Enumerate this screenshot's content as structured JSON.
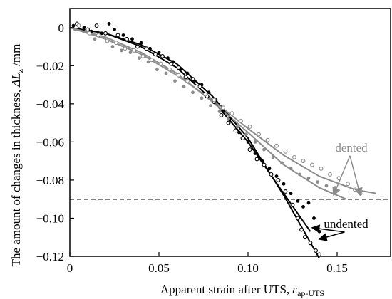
{
  "chart_data": {
    "type": "scatter",
    "xlabel": "Apparent strain after UTS,",
    "xlabel_symbol": "ε",
    "xlabel_sub": "ap-UTS",
    "ylabel": "The amount of changes in thickness,",
    "ylabel_symbol": "ΔL",
    "ylabel_sub": "z",
    "ylabel_unit": " /mm",
    "xlim": [
      0,
      0.18
    ],
    "ylim": [
      -0.12,
      0.01
    ],
    "x_ticks": [
      0,
      0.05,
      0.1,
      0.15
    ],
    "x_tick_labels": [
      "0",
      "0.05",
      "0.10",
      "0.15"
    ],
    "y_ticks": [
      0,
      -0.02,
      -0.04,
      -0.06,
      -0.08,
      -0.1,
      -0.12
    ],
    "y_tick_labels": [
      "0",
      "−0.02",
      "−0.04",
      "−0.06",
      "−0.08",
      "−0.10",
      "−0.12"
    ],
    "grid": false,
    "colors": {
      "undented": "#000000",
      "dented": "#8c8c8c"
    },
    "reference_line": {
      "y": -0.09,
      "style": "dashed"
    },
    "annotations": [
      {
        "text": "dented",
        "x": 0.158,
        "y": -0.065,
        "color": "#8c8c8c",
        "arrow_to": [
          [
            0.148,
            -0.088
          ],
          [
            0.163,
            -0.088
          ]
        ]
      },
      {
        "text": "undented",
        "x": 0.155,
        "y": -0.105,
        "color": "#000000",
        "arrow_to": [
          [
            0.136,
            -0.105
          ],
          [
            0.14,
            -0.111
          ]
        ]
      }
    ],
    "series": [
      {
        "group": "undented",
        "marker": "filled",
        "points": [
          [
            0.002,
            0.001
          ],
          [
            0.008,
            0.0
          ],
          [
            0.012,
            -0.002
          ],
          [
            0.018,
            -0.003
          ],
          [
            0.022,
            0.002
          ],
          [
            0.025,
            -0.001
          ],
          [
            0.03,
            -0.004
          ],
          [
            0.035,
            -0.006
          ],
          [
            0.04,
            -0.008
          ],
          [
            0.045,
            -0.011
          ],
          [
            0.05,
            -0.013
          ],
          [
            0.055,
            -0.016
          ],
          [
            0.058,
            -0.018
          ],
          [
            0.062,
            -0.022
          ],
          [
            0.066,
            -0.024
          ],
          [
            0.07,
            -0.028
          ],
          [
            0.074,
            -0.03
          ],
          [
            0.078,
            -0.034
          ],
          [
            0.082,
            -0.038
          ],
          [
            0.086,
            -0.044
          ],
          [
            0.09,
            -0.048
          ],
          [
            0.095,
            -0.055
          ],
          [
            0.1,
            -0.06
          ],
          [
            0.104,
            -0.066
          ],
          [
            0.108,
            -0.07
          ],
          [
            0.112,
            -0.074
          ],
          [
            0.116,
            -0.078
          ],
          [
            0.12,
            -0.082
          ],
          [
            0.124,
            -0.087
          ],
          [
            0.128,
            -0.091
          ],
          [
            0.131,
            -0.094
          ],
          [
            0.134,
            -0.092
          ],
          [
            0.137,
            -0.1
          ],
          [
            0.14,
            -0.107
          ]
        ]
      },
      {
        "group": "undented",
        "marker": "open",
        "points": [
          [
            0.004,
            0.002
          ],
          [
            0.01,
            -0.001
          ],
          [
            0.015,
            0.001
          ],
          [
            0.02,
            -0.003
          ],
          [
            0.027,
            -0.004
          ],
          [
            0.032,
            -0.006
          ],
          [
            0.038,
            -0.01
          ],
          [
            0.043,
            -0.011
          ],
          [
            0.048,
            -0.014
          ],
          [
            0.052,
            -0.015
          ],
          [
            0.057,
            -0.019
          ],
          [
            0.061,
            -0.021
          ],
          [
            0.065,
            -0.026
          ],
          [
            0.069,
            -0.027
          ],
          [
            0.073,
            -0.031
          ],
          [
            0.077,
            -0.036
          ],
          [
            0.081,
            -0.039
          ],
          [
            0.085,
            -0.046
          ],
          [
            0.089,
            -0.05
          ],
          [
            0.093,
            -0.054
          ],
          [
            0.097,
            -0.058
          ],
          [
            0.101,
            -0.064
          ],
          [
            0.105,
            -0.069
          ],
          [
            0.109,
            -0.072
          ],
          [
            0.113,
            -0.077
          ],
          [
            0.117,
            -0.08
          ],
          [
            0.121,
            -0.086
          ],
          [
            0.125,
            -0.093
          ],
          [
            0.128,
            -0.1
          ],
          [
            0.13,
            -0.106
          ],
          [
            0.132,
            -0.11
          ],
          [
            0.135,
            -0.113
          ],
          [
            0.138,
            -0.117
          ],
          [
            0.14,
            -0.119
          ]
        ]
      },
      {
        "group": "dented",
        "marker": "filled",
        "points": [
          [
            0.003,
            -0.001
          ],
          [
            0.009,
            -0.002
          ],
          [
            0.014,
            -0.006
          ],
          [
            0.019,
            -0.005
          ],
          [
            0.024,
            -0.01
          ],
          [
            0.029,
            -0.012
          ],
          [
            0.034,
            -0.013
          ],
          [
            0.039,
            -0.016
          ],
          [
            0.044,
            -0.018
          ],
          [
            0.049,
            -0.022
          ],
          [
            0.054,
            -0.024
          ],
          [
            0.059,
            -0.028
          ],
          [
            0.064,
            -0.031
          ],
          [
            0.069,
            -0.034
          ],
          [
            0.074,
            -0.037
          ],
          [
            0.079,
            -0.041
          ],
          [
            0.084,
            -0.044
          ],
          [
            0.089,
            -0.048
          ],
          [
            0.094,
            -0.052
          ],
          [
            0.099,
            -0.056
          ],
          [
            0.104,
            -0.06
          ],
          [
            0.109,
            -0.064
          ],
          [
            0.114,
            -0.068
          ],
          [
            0.119,
            -0.071
          ],
          [
            0.124,
            -0.074
          ],
          [
            0.129,
            -0.077
          ],
          [
            0.134,
            -0.079
          ],
          [
            0.139,
            -0.081
          ],
          [
            0.144,
            -0.083
          ],
          [
            0.149,
            -0.084
          ]
        ]
      },
      {
        "group": "dented",
        "marker": "open",
        "points": [
          [
            0.005,
            0.001
          ],
          [
            0.011,
            -0.003
          ],
          [
            0.016,
            -0.004
          ],
          [
            0.021,
            -0.007
          ],
          [
            0.026,
            -0.008
          ],
          [
            0.031,
            -0.011
          ],
          [
            0.036,
            -0.012
          ],
          [
            0.041,
            -0.015
          ],
          [
            0.046,
            -0.017
          ],
          [
            0.051,
            -0.019
          ],
          [
            0.056,
            -0.022
          ],
          [
            0.061,
            -0.025
          ],
          [
            0.066,
            -0.028
          ],
          [
            0.071,
            -0.031
          ],
          [
            0.076,
            -0.035
          ],
          [
            0.081,
            -0.038
          ],
          [
            0.086,
            -0.042
          ],
          [
            0.091,
            -0.045
          ],
          [
            0.096,
            -0.049
          ],
          [
            0.101,
            -0.052
          ],
          [
            0.106,
            -0.056
          ],
          [
            0.111,
            -0.059
          ],
          [
            0.116,
            -0.062
          ],
          [
            0.121,
            -0.065
          ],
          [
            0.126,
            -0.068
          ],
          [
            0.131,
            -0.07
          ],
          [
            0.136,
            -0.072
          ],
          [
            0.141,
            -0.074
          ],
          [
            0.146,
            -0.077
          ],
          [
            0.151,
            -0.079
          ],
          [
            0.156,
            -0.082
          ],
          [
            0.16,
            -0.085
          ],
          [
            0.163,
            -0.087
          ]
        ]
      }
    ],
    "fit_lines": [
      {
        "group": "undented",
        "points": [
          [
            0,
            0
          ],
          [
            0.02,
            -0.003
          ],
          [
            0.04,
            -0.009
          ],
          [
            0.06,
            -0.019
          ],
          [
            0.08,
            -0.036
          ],
          [
            0.1,
            -0.058
          ],
          [
            0.12,
            -0.088
          ],
          [
            0.14,
            -0.121
          ]
        ]
      },
      {
        "group": "undented",
        "points": [
          [
            0,
            0
          ],
          [
            0.02,
            -0.003
          ],
          [
            0.04,
            -0.01
          ],
          [
            0.06,
            -0.021
          ],
          [
            0.08,
            -0.038
          ],
          [
            0.1,
            -0.06
          ],
          [
            0.12,
            -0.087
          ],
          [
            0.135,
            -0.107
          ]
        ]
      },
      {
        "group": "dented",
        "points": [
          [
            0,
            0
          ],
          [
            0.02,
            -0.006
          ],
          [
            0.04,
            -0.014
          ],
          [
            0.06,
            -0.025
          ],
          [
            0.08,
            -0.038
          ],
          [
            0.1,
            -0.053
          ],
          [
            0.12,
            -0.067
          ],
          [
            0.14,
            -0.078
          ],
          [
            0.16,
            -0.085
          ],
          [
            0.172,
            -0.087
          ]
        ]
      },
      {
        "group": "dented",
        "points": [
          [
            0,
            0
          ],
          [
            0.02,
            -0.005
          ],
          [
            0.04,
            -0.013
          ],
          [
            0.06,
            -0.024
          ],
          [
            0.08,
            -0.039
          ],
          [
            0.1,
            -0.055
          ],
          [
            0.12,
            -0.072
          ],
          [
            0.14,
            -0.084
          ],
          [
            0.155,
            -0.09
          ]
        ]
      }
    ]
  }
}
